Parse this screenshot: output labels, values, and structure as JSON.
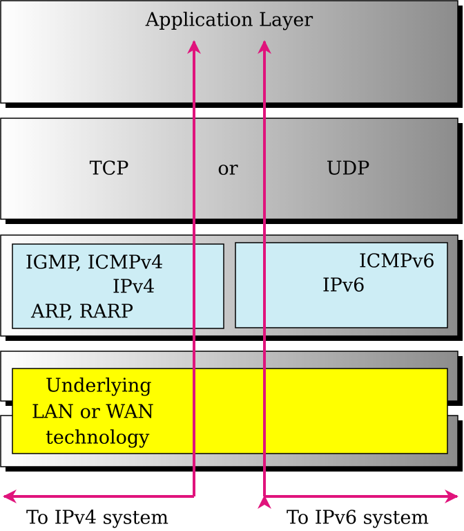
{
  "application_layer": {
    "label": "Application Layer"
  },
  "transport_layer": {
    "left": "TCP",
    "middle": "or",
    "right": "UDP"
  },
  "network_layer": {
    "ipv4_box": {
      "lines": [
        "IGMP, ICMPv4",
        "IPv4",
        "ARP, RARP"
      ]
    },
    "ipv6_box": {
      "lines": [
        "ICMPv6",
        "IPv6"
      ]
    }
  },
  "link_layer": {
    "lines": [
      "Underlying",
      "LAN or WAN",
      "technology"
    ]
  },
  "outputs": {
    "left": "To IPv4 system",
    "right": "To IPv6 system"
  }
}
